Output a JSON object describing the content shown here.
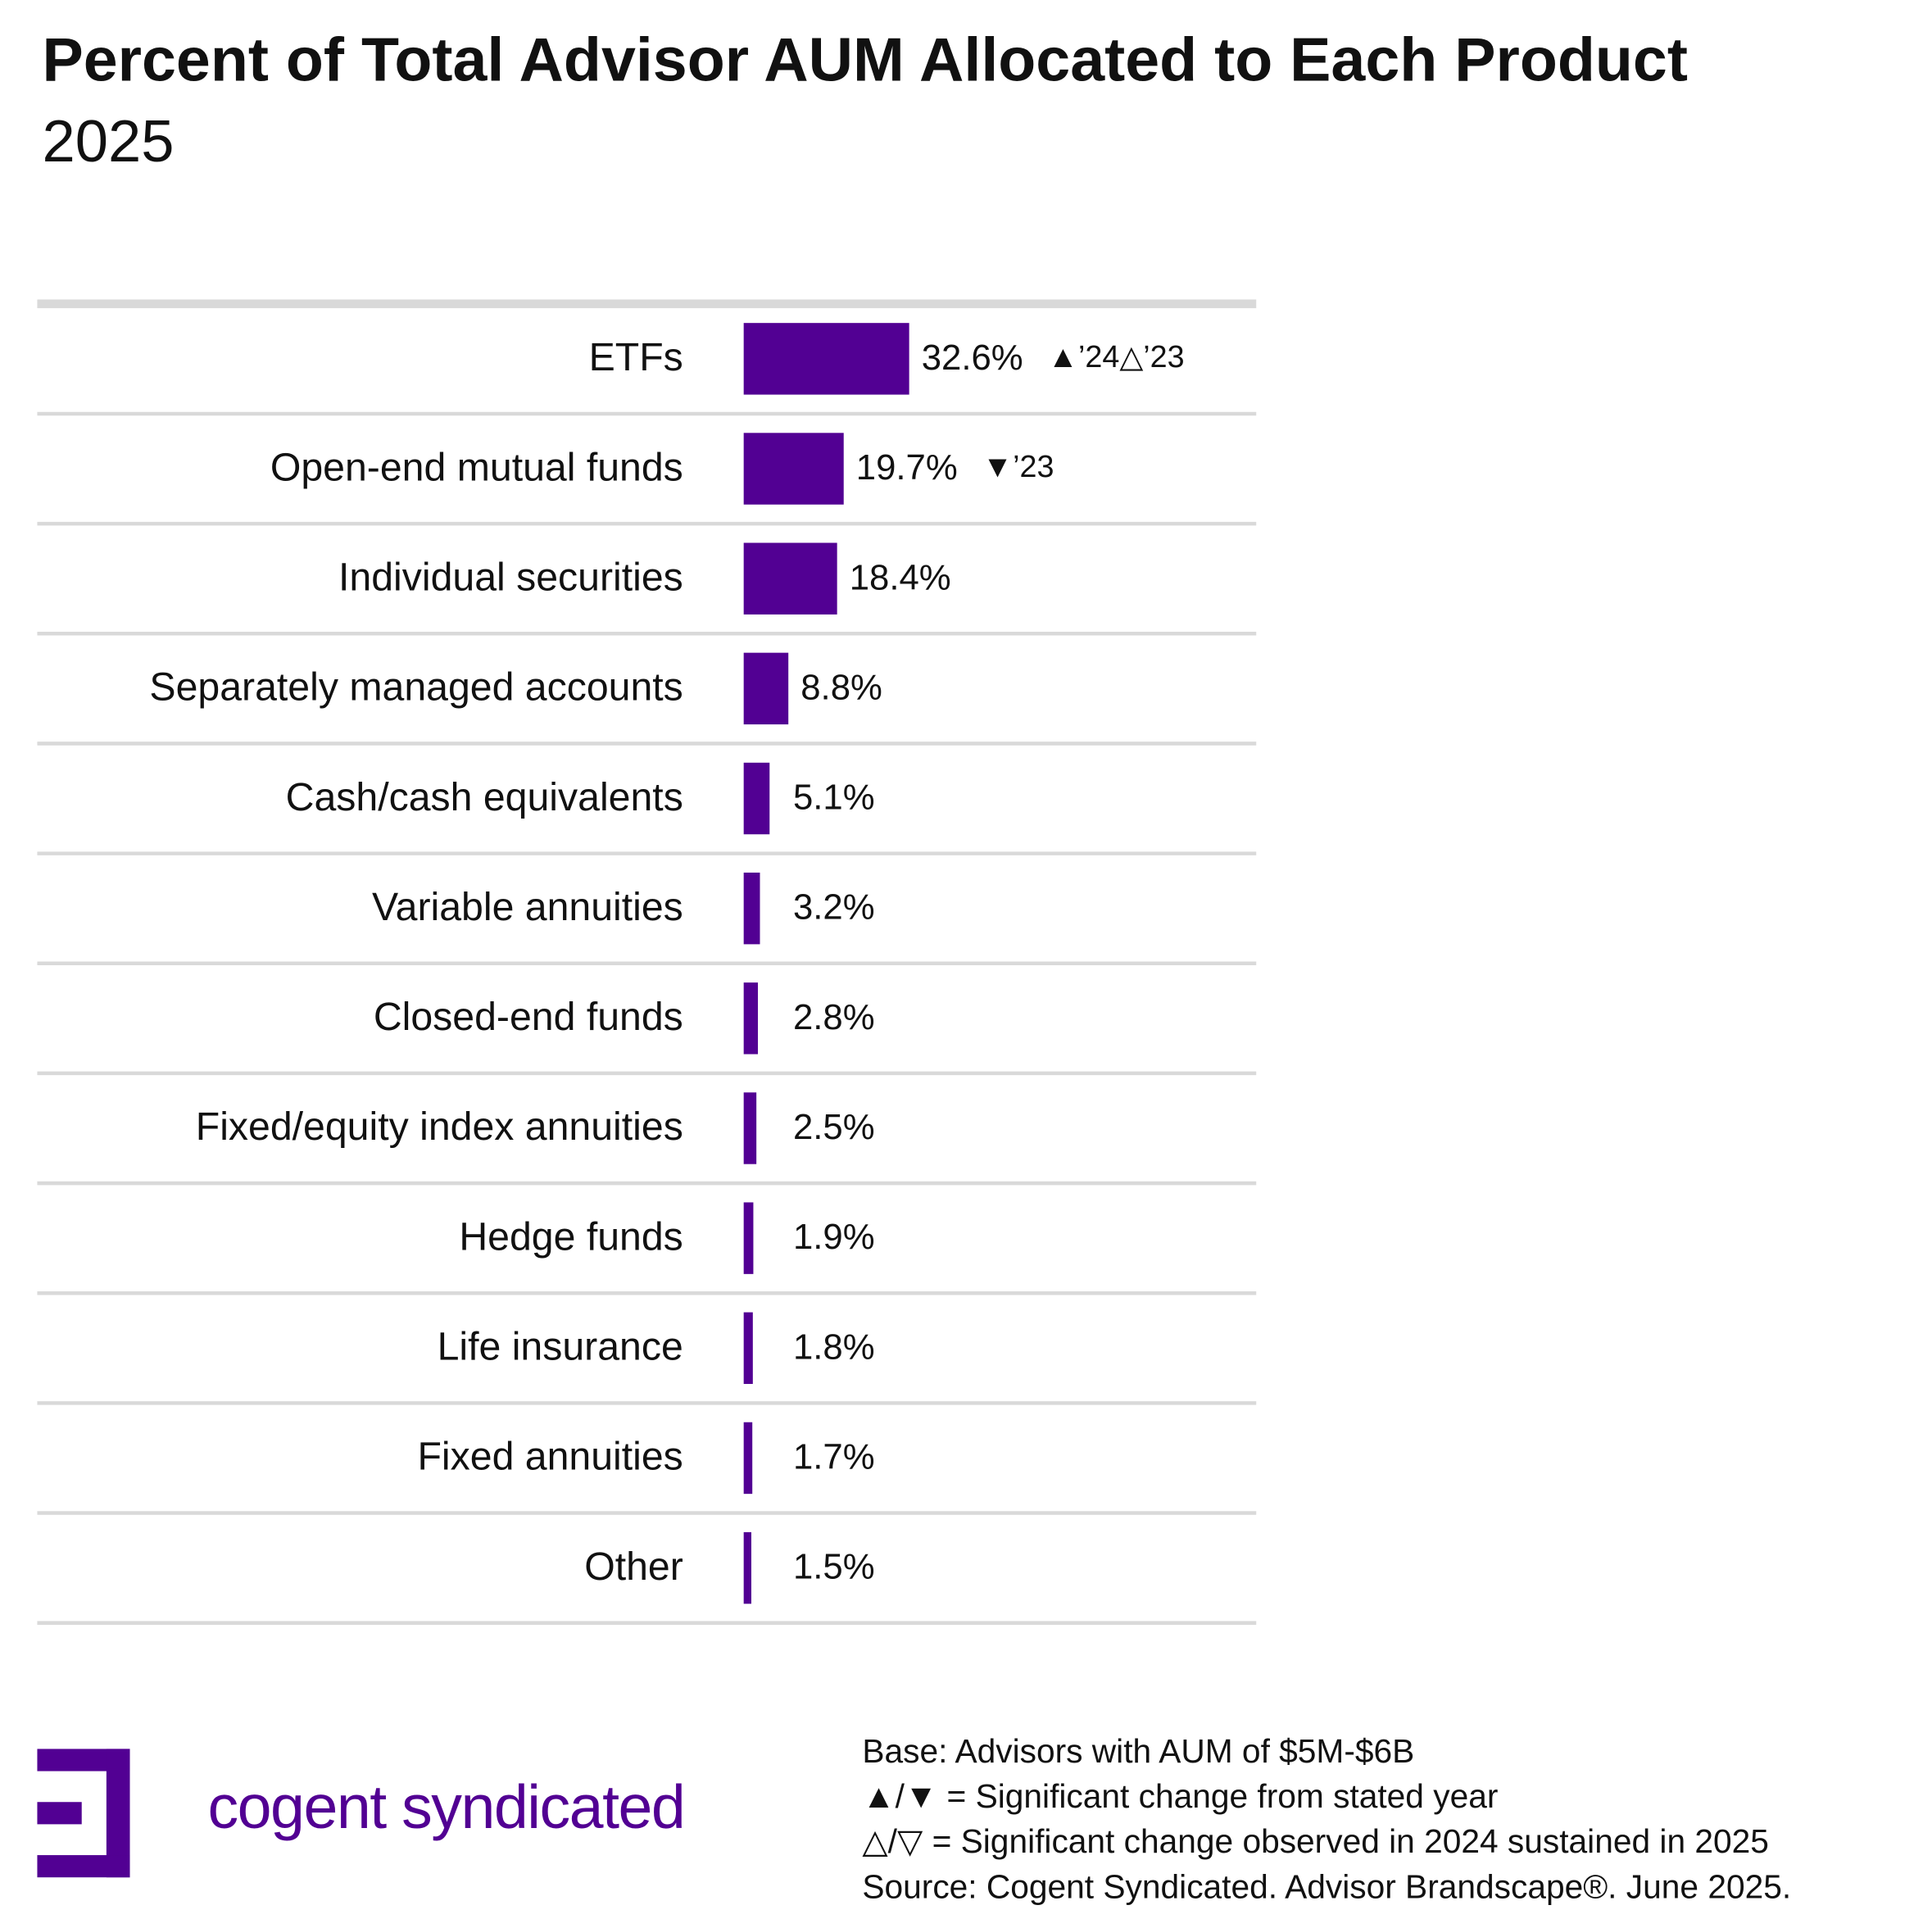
{
  "chart_data": {
    "type": "bar",
    "orientation": "horizontal",
    "title": "Percent of Total Advisor AUM Allocated to Each Product",
    "subtitle": "2025",
    "categories": [
      "ETFs",
      "Open-end mutual funds",
      "Individual securities",
      "Separately managed accounts",
      "Cash/cash equivalents",
      "Variable annuities",
      "Closed-end funds",
      "Fixed/equity index annuities",
      "Hedge funds",
      "Life insurance",
      "Fixed annuities",
      "Other"
    ],
    "values": [
      32.6,
      19.7,
      18.4,
      8.8,
      5.1,
      3.2,
      2.8,
      2.5,
      1.9,
      1.8,
      1.7,
      1.5
    ],
    "value_labels": [
      "32.6%",
      "19.7%",
      "18.4%",
      "8.8%",
      "5.1%",
      "3.2%",
      "2.8%",
      "2.5%",
      "1.9%",
      "1.8%",
      "1.7%",
      "1.5%"
    ],
    "markers": [
      "▲’24△’23",
      "▼’23",
      null,
      null,
      null,
      null,
      null,
      null,
      null,
      null,
      null,
      null
    ],
    "color": "#520093",
    "notes": [
      "Base: Advisors with AUM of $5M-$6B",
      "▲/▼ = Significant change from stated year",
      "△/▽ = Significant change observed in 2024 sustained in 2025",
      "Source: Cogent Syndicated. Advisor Brandscape®. June 2025."
    ],
    "logo": "cogent syndicated"
  }
}
